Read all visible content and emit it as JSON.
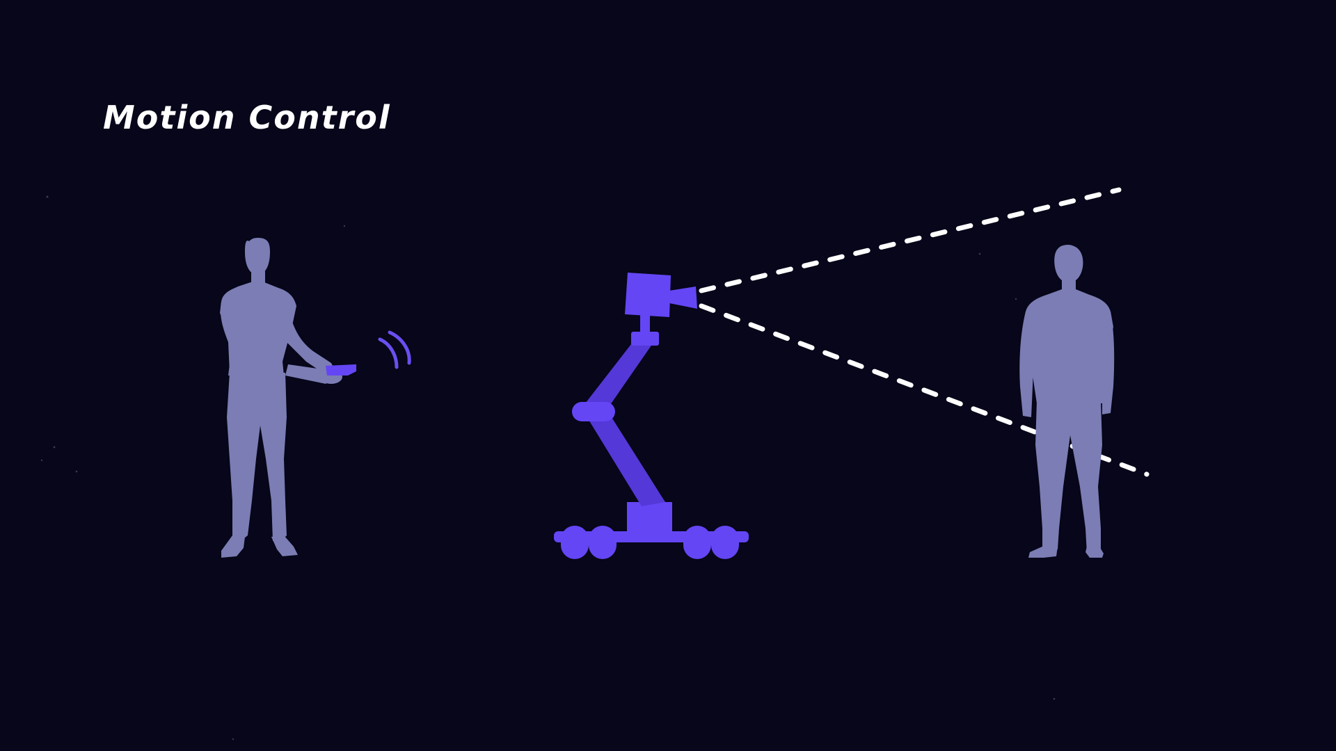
{
  "title": "Motion Control",
  "colors": {
    "background": "#07061a",
    "person": "#7b7db4",
    "robot_primary": "#6446f5",
    "robot_secondary": "#5538d8",
    "signal": "#6a4ff0",
    "view_lines": "#ffffff"
  },
  "figures": {
    "operator": "operator-silhouette",
    "remote": "remote-controller",
    "signal": "wireless-signal-icon",
    "robot": "camera-robot-arm",
    "subject": "subject-silhouette",
    "view": "camera-field-of-view"
  }
}
